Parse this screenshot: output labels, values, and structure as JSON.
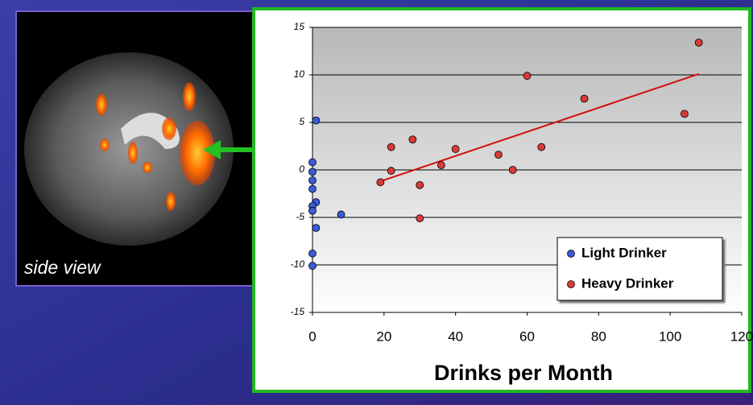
{
  "image_caption": "side view",
  "chart_data": {
    "type": "scatter",
    "x_label": "Drinks per Month",
    "xlim": [
      0,
      120
    ],
    "xticks": [
      0,
      20,
      40,
      60,
      80,
      100,
      120
    ],
    "ylim": [
      -15,
      15
    ],
    "yticks": [
      -15,
      -10,
      -5,
      0,
      5,
      10,
      15
    ],
    "grid": true,
    "legend": "lower right",
    "series": [
      {
        "name": "Light Drinker",
        "color": "#3b5bd9",
        "x": [
          1,
          0,
          0,
          0,
          0,
          1,
          0,
          0,
          8,
          1,
          0,
          0
        ],
        "values": [
          5.2,
          0.8,
          -0.2,
          -1.1,
          -2.0,
          -3.4,
          -3.8,
          -4.3,
          -4.7,
          -6.1,
          -8.8,
          -10.1
        ]
      },
      {
        "name": "Heavy Drinker",
        "color": "#d83a3a",
        "x": [
          19,
          22,
          22,
          28,
          30,
          30,
          36,
          40,
          52,
          56,
          60,
          64,
          76,
          104,
          108
        ],
        "values": [
          -1.3,
          2.4,
          -0.1,
          3.2,
          -1.6,
          -5.1,
          0.5,
          2.2,
          1.6,
          0.0,
          9.9,
          2.4,
          7.5,
          5.9,
          13.4
        ]
      }
    ],
    "trend_line": {
      "color": "#d01010",
      "x": [
        19,
        108
      ],
      "values": [
        -1.2,
        10.1
      ]
    }
  }
}
